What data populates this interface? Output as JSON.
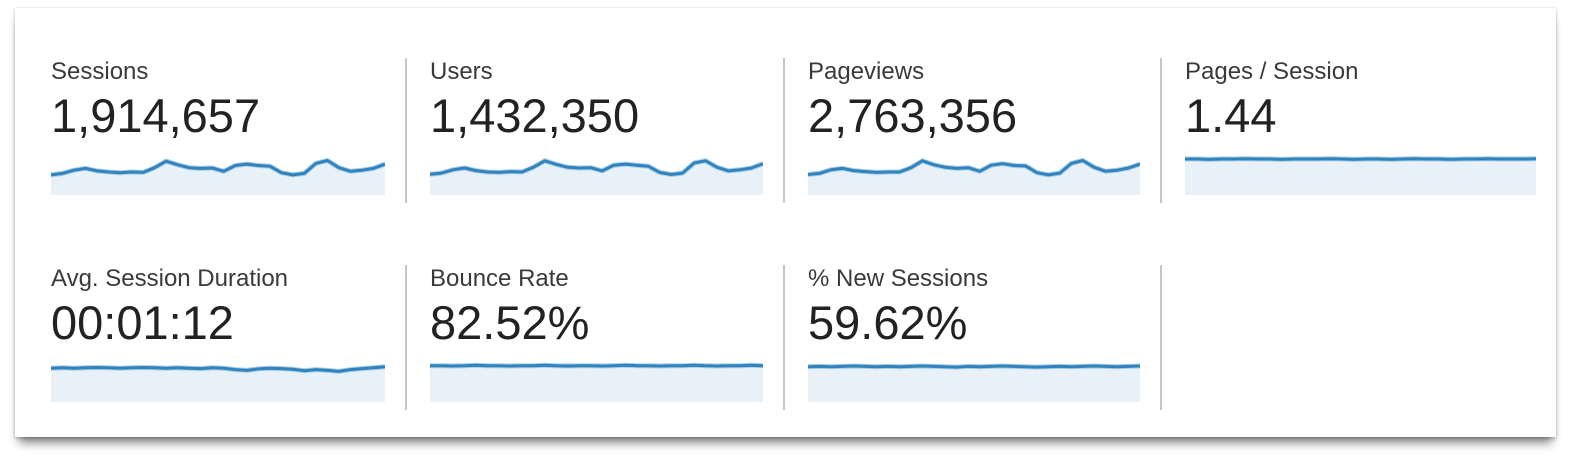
{
  "colors": {
    "spark_line": "#3183bd",
    "spark_line_halo": "#a9cfe6",
    "spark_fill": "#e8f1f8",
    "divider": "#c6c6c6",
    "label_text": "#3a3a3a",
    "value_text": "#222222",
    "panel_bg": "#ffffff"
  },
  "chart_data": [
    {
      "type": "area",
      "label": "Sessions",
      "value": "1,914,657",
      "values_normalized": [
        0.42,
        0.46,
        0.55,
        0.6,
        0.53,
        0.5,
        0.48,
        0.5,
        0.49,
        0.62,
        0.8,
        0.7,
        0.62,
        0.6,
        0.61,
        0.52,
        0.68,
        0.72,
        0.68,
        0.66,
        0.48,
        0.42,
        0.46,
        0.74,
        0.82,
        0.62,
        0.52,
        0.55,
        0.6,
        0.72
      ]
    },
    {
      "type": "area",
      "label": "Users",
      "value": "1,432,350",
      "values_normalized": [
        0.44,
        0.47,
        0.56,
        0.61,
        0.54,
        0.5,
        0.49,
        0.51,
        0.5,
        0.63,
        0.81,
        0.71,
        0.63,
        0.61,
        0.62,
        0.53,
        0.69,
        0.72,
        0.69,
        0.66,
        0.49,
        0.43,
        0.47,
        0.75,
        0.81,
        0.63,
        0.53,
        0.56,
        0.61,
        0.73
      ]
    },
    {
      "type": "area",
      "label": "Pageviews",
      "value": "2,763,356",
      "values_normalized": [
        0.43,
        0.46,
        0.56,
        0.6,
        0.54,
        0.51,
        0.49,
        0.5,
        0.5,
        0.62,
        0.81,
        0.7,
        0.63,
        0.6,
        0.62,
        0.52,
        0.69,
        0.73,
        0.68,
        0.67,
        0.48,
        0.42,
        0.47,
        0.74,
        0.82,
        0.63,
        0.52,
        0.55,
        0.61,
        0.72
      ]
    },
    {
      "type": "area",
      "label": "Pages / Session",
      "value": "1.44",
      "values_normalized": [
        0.86,
        0.86,
        0.85,
        0.86,
        0.86,
        0.87,
        0.86,
        0.86,
        0.85,
        0.86,
        0.86,
        0.86,
        0.87,
        0.86,
        0.85,
        0.86,
        0.86,
        0.85,
        0.86,
        0.87,
        0.86,
        0.86,
        0.85,
        0.86,
        0.86,
        0.87,
        0.86,
        0.86,
        0.86,
        0.87
      ]
    },
    {
      "type": "area",
      "label": "Avg. Session Duration",
      "value": "00:01:12",
      "values_normalized": [
        0.8,
        0.81,
        0.8,
        0.81,
        0.82,
        0.81,
        0.8,
        0.81,
        0.82,
        0.81,
        0.8,
        0.81,
        0.8,
        0.79,
        0.81,
        0.8,
        0.76,
        0.74,
        0.78,
        0.8,
        0.79,
        0.77,
        0.73,
        0.76,
        0.74,
        0.71,
        0.76,
        0.79,
        0.81,
        0.84
      ]
    },
    {
      "type": "area",
      "label": "Bounce Rate",
      "value": "82.52%",
      "values_normalized": [
        0.87,
        0.87,
        0.86,
        0.87,
        0.88,
        0.87,
        0.87,
        0.86,
        0.87,
        0.87,
        0.88,
        0.87,
        0.86,
        0.87,
        0.87,
        0.86,
        0.87,
        0.88,
        0.87,
        0.87,
        0.86,
        0.87,
        0.87,
        0.88,
        0.87,
        0.86,
        0.87,
        0.87,
        0.88,
        0.87
      ]
    },
    {
      "type": "area",
      "label": "% New Sessions",
      "value": "59.62%",
      "values_normalized": [
        0.84,
        0.85,
        0.84,
        0.85,
        0.86,
        0.85,
        0.84,
        0.85,
        0.84,
        0.85,
        0.86,
        0.85,
        0.84,
        0.83,
        0.85,
        0.84,
        0.85,
        0.86,
        0.85,
        0.84,
        0.83,
        0.84,
        0.85,
        0.84,
        0.85,
        0.86,
        0.85,
        0.84,
        0.85,
        0.86
      ]
    }
  ]
}
